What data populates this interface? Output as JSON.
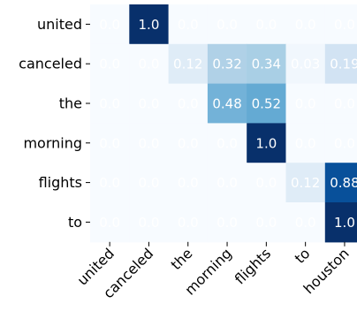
{
  "chart_data": {
    "type": "heatmap",
    "rows": [
      "united",
      "canceled",
      "the",
      "morning",
      "flights",
      "to"
    ],
    "columns": [
      "united",
      "canceled",
      "the",
      "morning",
      "flights",
      "to",
      "houston"
    ],
    "values": [
      [
        0.0,
        1.0,
        0.0,
        0.0,
        0.0,
        0.0,
        0.0
      ],
      [
        0.0,
        0.0,
        0.12,
        0.32,
        0.34,
        0.03,
        0.19
      ],
      [
        0.0,
        0.0,
        0.0,
        0.48,
        0.52,
        0.0,
        0.0
      ],
      [
        0.0,
        0.0,
        0.0,
        0.0,
        1.0,
        0.0,
        0.0
      ],
      [
        0.0,
        0.0,
        0.0,
        0.0,
        0.0,
        0.12,
        0.88
      ],
      [
        0.0,
        0.0,
        0.0,
        0.0,
        0.0,
        0.0,
        1.0
      ]
    ],
    "cell_labels": [
      [
        "0.0",
        "1.0",
        "0.0",
        "0.0",
        "0.0",
        "0.0",
        "0.0"
      ],
      [
        "0.0",
        "0.0",
        "0.12",
        "0.32",
        "0.34",
        "0.03",
        "0.19"
      ],
      [
        "0.0",
        "0.0",
        "0.0",
        "0.48",
        "0.52",
        "0.0",
        "0.0"
      ],
      [
        "0.0",
        "0.0",
        "0.0",
        "0.0",
        "1.0",
        "0.0",
        "0.0"
      ],
      [
        "0.0",
        "0.0",
        "0.0",
        "0.0",
        "0.0",
        "0.12",
        "0.88"
      ],
      [
        "0.0",
        "0.0",
        "0.0",
        "0.0",
        "0.0",
        "0.0",
        "1.0"
      ]
    ],
    "colormap": "Blues",
    "value_range": [
      0,
      1
    ],
    "title": "",
    "xlabel": "",
    "ylabel": "",
    "x_tick_rotation": "45deg",
    "grid": false,
    "legend": "none"
  }
}
